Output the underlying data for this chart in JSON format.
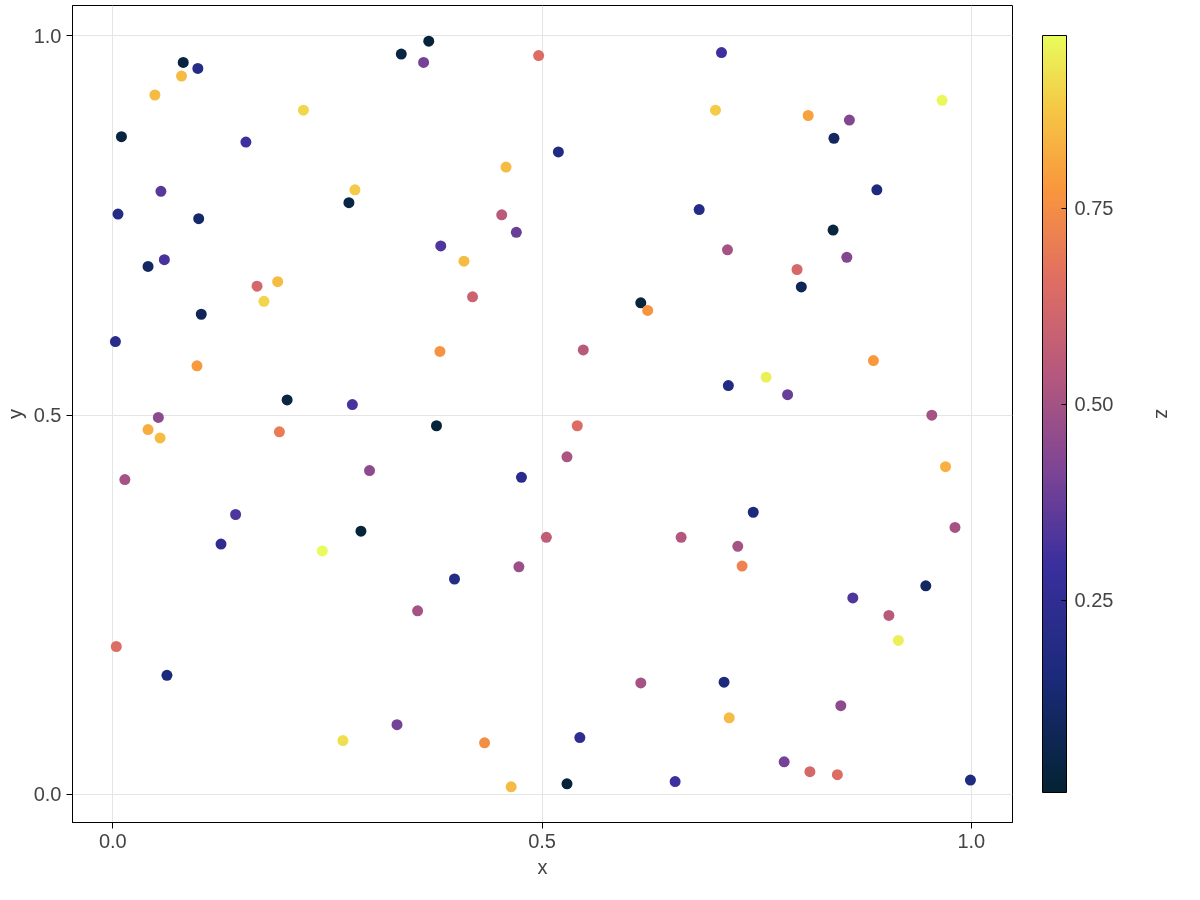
{
  "chart_data": {
    "type": "scatter",
    "xlabel": "x",
    "ylabel": "y",
    "clabel": "z",
    "x": [
      0.01,
      0.006,
      0.003,
      0.014,
      0.004,
      0.063,
      0.041,
      0.049,
      0.056,
      0.06,
      0.053,
      0.041,
      0.055,
      0.082,
      0.099,
      0.08,
      0.1,
      0.103,
      0.098,
      0.126,
      0.143,
      0.155,
      0.168,
      0.176,
      0.192,
      0.194,
      0.203,
      0.222,
      0.244,
      0.268,
      0.275,
      0.282,
      0.279,
      0.289,
      0.299,
      0.331,
      0.336,
      0.362,
      0.368,
      0.377,
      0.382,
      0.381,
      0.355,
      0.398,
      0.409,
      0.419,
      0.433,
      0.453,
      0.458,
      0.47,
      0.473,
      0.476,
      0.464,
      0.496,
      0.505,
      0.519,
      0.529,
      0.529,
      0.541,
      0.548,
      0.544,
      0.615,
      0.623,
      0.615,
      0.655,
      0.662,
      0.683,
      0.702,
      0.709,
      0.716,
      0.717,
      0.712,
      0.718,
      0.728,
      0.733,
      0.746,
      0.761,
      0.782,
      0.786,
      0.797,
      0.802,
      0.81,
      0.812,
      0.839,
      0.84,
      0.844,
      0.848,
      0.855,
      0.858,
      0.862,
      0.886,
      0.89,
      0.904,
      0.915,
      0.947,
      0.954,
      0.966,
      0.97,
      0.981,
      0.999
    ],
    "values": [
      0.867,
      0.765,
      0.597,
      0.415,
      0.195,
      0.157,
      0.696,
      0.922,
      0.795,
      0.705,
      0.497,
      0.481,
      0.47,
      0.965,
      0.957,
      0.947,
      0.759,
      0.633,
      0.565,
      0.33,
      0.369,
      0.86,
      0.67,
      0.65,
      0.676,
      0.478,
      0.52,
      0.902,
      0.321,
      0.071,
      0.78,
      0.797,
      0.514,
      0.347,
      0.427,
      0.092,
      0.976,
      0.965,
      0.993,
      0.486,
      0.723,
      0.584,
      0.242,
      0.284,
      0.703,
      0.656,
      0.068,
      0.764,
      0.827,
      0.741,
      0.3,
      0.418,
      0.01,
      0.974,
      0.339,
      0.847,
      0.445,
      0.014,
      0.486,
      0.586,
      0.075,
      0.648,
      0.638,
      0.147,
      0.017,
      0.339,
      0.771,
      0.902,
      0.978,
      0.718,
      0.539,
      0.148,
      0.101,
      0.327,
      0.301,
      0.372,
      0.55,
      0.043,
      0.527,
      0.692,
      0.669,
      0.895,
      0.03,
      0.744,
      0.865,
      0.026,
      0.117,
      0.708,
      0.889,
      0.259,
      0.572,
      0.797,
      0.236,
      0.203,
      0.275,
      0.5,
      0.915,
      0.432,
      0.352,
      0.019
    ],
    "cvalues": [
      0.03,
      0.2,
      0.22,
      0.5,
      0.65,
      0.15,
      0.1,
      0.85,
      0.35,
      0.32,
      0.45,
      0.82,
      0.85,
      0.03,
      0.2,
      0.85,
      0.12,
      0.08,
      0.78,
      0.25,
      0.33,
      0.3,
      0.62,
      0.9,
      0.85,
      0.7,
      0.05,
      0.9,
      0.97,
      0.92,
      0.05,
      0.88,
      0.32,
      0.02,
      0.45,
      0.4,
      0.04,
      0.4,
      0.02,
      0.02,
      0.33,
      0.76,
      0.5,
      0.2,
      0.85,
      0.6,
      0.75,
      0.55,
      0.85,
      0.38,
      0.48,
      0.22,
      0.85,
      0.65,
      0.57,
      0.18,
      0.52,
      0.02,
      0.65,
      0.55,
      0.25,
      0.03,
      0.77,
      0.5,
      0.3,
      0.53,
      0.2,
      0.88,
      0.3,
      0.5,
      0.18,
      0.15,
      0.85,
      0.5,
      0.72,
      0.15,
      0.95,
      0.4,
      0.38,
      0.63,
      0.08,
      0.8,
      0.63,
      0.03,
      0.1,
      0.65,
      0.45,
      0.43,
      0.43,
      0.33,
      0.78,
      0.16,
      0.55,
      0.95,
      0.1,
      0.5,
      0.96,
      0.83,
      0.5,
      0.17
    ],
    "xlim": [
      -0.047,
      1.048
    ],
    "ylim": [
      -0.037,
      1.04
    ],
    "xticks": [
      {
        "value": 0,
        "label": "0.0"
      },
      0.5,
      {
        "value": 1,
        "label": "1.0"
      }
    ],
    "yticks": [
      {
        "value": 0,
        "label": "0.0"
      },
      0.5,
      {
        "value": 1,
        "label": "1.0"
      }
    ],
    "clim": [
      0.005,
      0.97
    ],
    "cticks": [
      0.25,
      {
        "value": 0.5,
        "label": "0.50"
      },
      0.75
    ],
    "grid": true,
    "marker": "circle"
  }
}
